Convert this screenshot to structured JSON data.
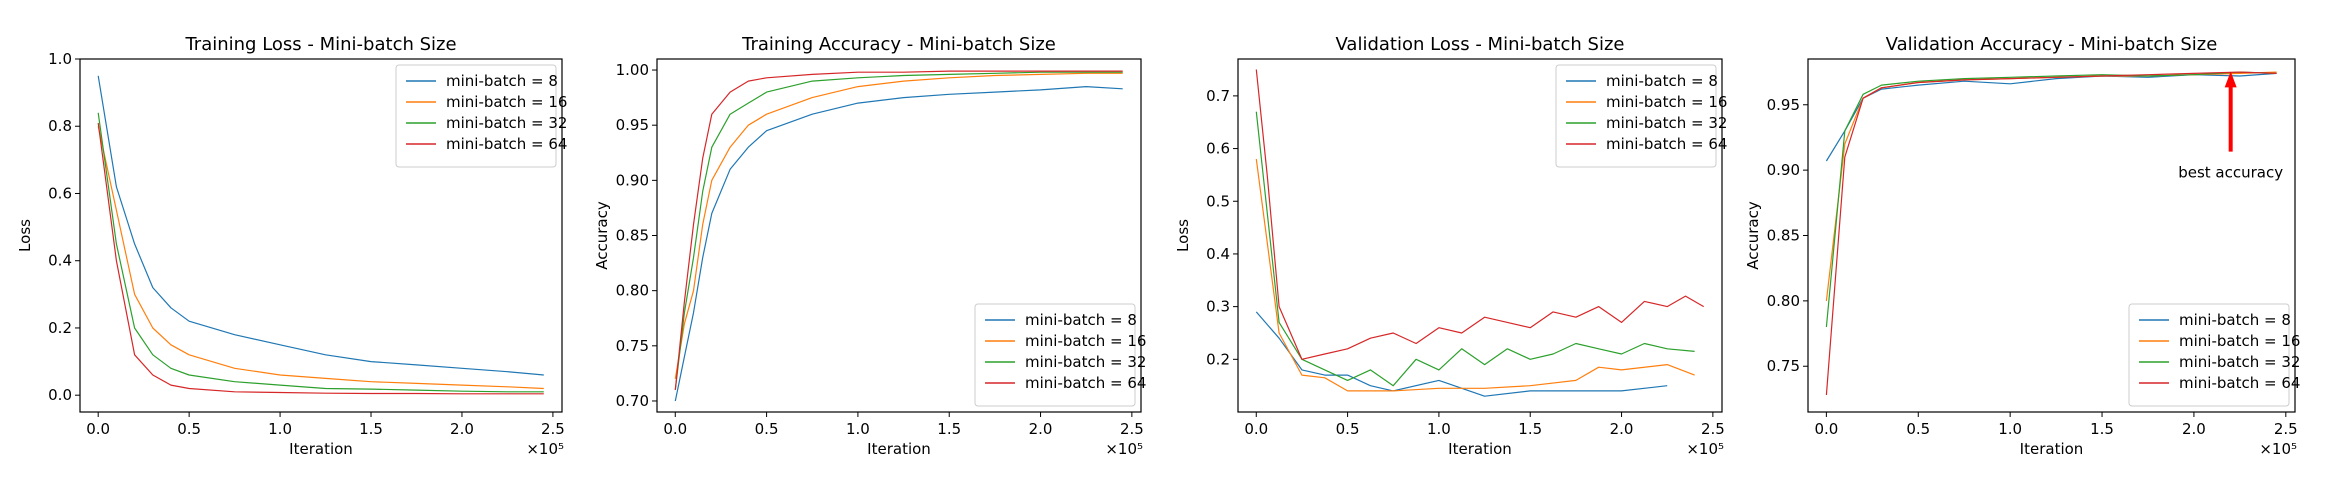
{
  "colors": {
    "mb8": "#1f77b4",
    "mb16": "#ff7f0e",
    "mb32": "#2ca02c",
    "mb64": "#d62728",
    "arrow": "#ff0000"
  },
  "chart_data": [
    {
      "type": "line",
      "title": "Training Loss - Mini-batch Size",
      "xlabel": "Iteration",
      "ylabel": "Loss",
      "x_offset_label": "×10⁵",
      "xlim": [
        -0.1,
        2.55
      ],
      "ylim": [
        -0.05,
        1.0
      ],
      "xticks": [
        0.0,
        0.5,
        1.0,
        1.5,
        2.0,
        2.5
      ],
      "xtick_labels": [
        "0.0",
        "0.5",
        "1.0",
        "1.5",
        "2.0",
        "2.5"
      ],
      "yticks": [
        0.0,
        0.2,
        0.4,
        0.6,
        0.8,
        1.0
      ],
      "ytick_labels": [
        "0.0",
        "0.2",
        "0.4",
        "0.6",
        "0.8",
        "1.0"
      ],
      "legend_position": "top-right",
      "series": [
        {
          "name": "mini-batch = 8",
          "color": "#1f77b4",
          "x": [
            0.0,
            0.1,
            0.2,
            0.3,
            0.4,
            0.5,
            0.75,
            1.0,
            1.25,
            1.5,
            1.75,
            2.0,
            2.25,
            2.45
          ],
          "y": [
            0.95,
            0.62,
            0.45,
            0.32,
            0.26,
            0.22,
            0.18,
            0.15,
            0.12,
            0.1,
            0.09,
            0.08,
            0.07,
            0.06
          ]
        },
        {
          "name": "mini-batch = 16",
          "color": "#ff7f0e",
          "x": [
            0.0,
            0.1,
            0.2,
            0.3,
            0.4,
            0.5,
            0.75,
            1.0,
            1.25,
            1.5,
            1.75,
            2.0,
            2.25,
            2.45
          ],
          "y": [
            0.8,
            0.55,
            0.3,
            0.2,
            0.15,
            0.12,
            0.08,
            0.06,
            0.05,
            0.04,
            0.035,
            0.03,
            0.025,
            0.02
          ]
        },
        {
          "name": "mini-batch = 32",
          "color": "#2ca02c",
          "x": [
            0.0,
            0.1,
            0.2,
            0.3,
            0.4,
            0.5,
            0.75,
            1.0,
            1.25,
            1.5,
            1.75,
            2.0,
            2.25,
            2.45
          ],
          "y": [
            0.84,
            0.45,
            0.2,
            0.12,
            0.08,
            0.06,
            0.04,
            0.03,
            0.02,
            0.018,
            0.015,
            0.012,
            0.01,
            0.01
          ]
        },
        {
          "name": "mini-batch = 64",
          "color": "#d62728",
          "x": [
            0.0,
            0.1,
            0.2,
            0.3,
            0.4,
            0.5,
            0.75,
            1.0,
            1.25,
            1.5,
            1.75,
            2.0,
            2.25,
            2.45
          ],
          "y": [
            0.81,
            0.4,
            0.12,
            0.06,
            0.03,
            0.02,
            0.01,
            0.008,
            0.006,
            0.005,
            0.005,
            0.004,
            0.004,
            0.004
          ]
        }
      ]
    },
    {
      "type": "line",
      "title": "Training Accuracy - Mini-batch Size",
      "xlabel": "Iteration",
      "ylabel": "Accuracy",
      "x_offset_label": "×10⁵",
      "xlim": [
        -0.1,
        2.55
      ],
      "ylim": [
        0.69,
        1.01
      ],
      "xticks": [
        0.0,
        0.5,
        1.0,
        1.5,
        2.0,
        2.5
      ],
      "xtick_labels": [
        "0.0",
        "0.5",
        "1.0",
        "1.5",
        "2.0",
        "2.5"
      ],
      "yticks": [
        0.7,
        0.75,
        0.8,
        0.85,
        0.9,
        0.95,
        1.0
      ],
      "ytick_labels": [
        "0.70",
        "0.75",
        "0.80",
        "0.85",
        "0.90",
        "0.95",
        "1.00"
      ],
      "legend_position": "bottom-right",
      "series": [
        {
          "name": "mini-batch = 8",
          "color": "#1f77b4",
          "x": [
            0.0,
            0.05,
            0.1,
            0.15,
            0.2,
            0.3,
            0.4,
            0.5,
            0.75,
            1.0,
            1.25,
            1.5,
            1.75,
            2.0,
            2.25,
            2.45
          ],
          "y": [
            0.7,
            0.74,
            0.78,
            0.83,
            0.87,
            0.91,
            0.93,
            0.945,
            0.96,
            0.97,
            0.975,
            0.978,
            0.98,
            0.982,
            0.985,
            0.983
          ]
        },
        {
          "name": "mini-batch = 16",
          "color": "#ff7f0e",
          "x": [
            0.0,
            0.05,
            0.1,
            0.15,
            0.2,
            0.3,
            0.4,
            0.5,
            0.75,
            1.0,
            1.25,
            1.5,
            1.75,
            2.0,
            2.25,
            2.45
          ],
          "y": [
            0.72,
            0.77,
            0.8,
            0.86,
            0.9,
            0.93,
            0.95,
            0.96,
            0.975,
            0.985,
            0.99,
            0.993,
            0.995,
            0.996,
            0.997,
            0.997
          ]
        },
        {
          "name": "mini-batch = 32",
          "color": "#2ca02c",
          "x": [
            0.0,
            0.05,
            0.1,
            0.15,
            0.2,
            0.3,
            0.4,
            0.5,
            0.75,
            1.0,
            1.25,
            1.5,
            1.75,
            2.0,
            2.25,
            2.45
          ],
          "y": [
            0.71,
            0.78,
            0.83,
            0.89,
            0.93,
            0.96,
            0.97,
            0.98,
            0.99,
            0.993,
            0.995,
            0.996,
            0.997,
            0.998,
            0.998,
            0.998
          ]
        },
        {
          "name": "mini-batch = 64",
          "color": "#d62728",
          "x": [
            0.0,
            0.05,
            0.1,
            0.15,
            0.2,
            0.3,
            0.4,
            0.5,
            0.75,
            1.0,
            1.25,
            1.5,
            1.75,
            2.0,
            2.25,
            2.45
          ],
          "y": [
            0.71,
            0.79,
            0.86,
            0.92,
            0.96,
            0.98,
            0.99,
            0.993,
            0.996,
            0.998,
            0.998,
            0.999,
            0.999,
            0.999,
            0.999,
            0.999
          ]
        }
      ]
    },
    {
      "type": "line",
      "title": "Validation Loss - Mini-batch Size",
      "xlabel": "Iteration",
      "ylabel": "Loss",
      "x_offset_label": "×10⁵",
      "xlim": [
        -0.1,
        2.55
      ],
      "ylim": [
        0.1,
        0.77
      ],
      "xticks": [
        0.0,
        0.5,
        1.0,
        1.5,
        2.0,
        2.5
      ],
      "xtick_labels": [
        "0.0",
        "0.5",
        "1.0",
        "1.5",
        "2.0",
        "2.5"
      ],
      "yticks": [
        0.2,
        0.3,
        0.4,
        0.5,
        0.6,
        0.7
      ],
      "ytick_labels": [
        "0.2",
        "0.3",
        "0.4",
        "0.5",
        "0.6",
        "0.7"
      ],
      "legend_position": "top-right",
      "series": [
        {
          "name": "mini-batch = 8",
          "color": "#1f77b4",
          "x": [
            0.0,
            0.125,
            0.25,
            0.375,
            0.5,
            0.625,
            0.75,
            1.0,
            1.25,
            1.5,
            1.75,
            2.0,
            2.25
          ],
          "y": [
            0.29,
            0.24,
            0.18,
            0.17,
            0.17,
            0.15,
            0.14,
            0.16,
            0.13,
            0.14,
            0.14,
            0.14,
            0.15
          ]
        },
        {
          "name": "mini-batch = 16",
          "color": "#ff7f0e",
          "x": [
            0.0,
            0.125,
            0.25,
            0.375,
            0.5,
            0.75,
            1.0,
            1.25,
            1.5,
            1.75,
            1.875,
            2.0,
            2.25,
            2.4
          ],
          "y": [
            0.58,
            0.25,
            0.17,
            0.165,
            0.14,
            0.14,
            0.145,
            0.145,
            0.15,
            0.16,
            0.185,
            0.18,
            0.19,
            0.17
          ]
        },
        {
          "name": "mini-batch = 32",
          "color": "#2ca02c",
          "x": [
            0.0,
            0.125,
            0.25,
            0.375,
            0.5,
            0.625,
            0.75,
            0.875,
            1.0,
            1.125,
            1.25,
            1.375,
            1.5,
            1.625,
            1.75,
            1.875,
            2.0,
            2.125,
            2.25,
            2.4
          ],
          "y": [
            0.67,
            0.27,
            0.2,
            0.18,
            0.16,
            0.18,
            0.15,
            0.2,
            0.18,
            0.22,
            0.19,
            0.22,
            0.2,
            0.21,
            0.23,
            0.22,
            0.21,
            0.23,
            0.22,
            0.215
          ]
        },
        {
          "name": "mini-batch = 64",
          "color": "#d62728",
          "x": [
            0.0,
            0.06,
            0.125,
            0.25,
            0.375,
            0.5,
            0.625,
            0.75,
            0.875,
            1.0,
            1.125,
            1.25,
            1.375,
            1.5,
            1.625,
            1.75,
            1.875,
            2.0,
            2.125,
            2.25,
            2.35,
            2.45
          ],
          "y": [
            0.75,
            0.55,
            0.3,
            0.2,
            0.21,
            0.22,
            0.24,
            0.25,
            0.23,
            0.26,
            0.25,
            0.28,
            0.27,
            0.26,
            0.29,
            0.28,
            0.3,
            0.27,
            0.31,
            0.3,
            0.32,
            0.3
          ]
        }
      ]
    },
    {
      "type": "line",
      "title": "Validation Accuracy - Mini-batch Size",
      "xlabel": "Iteration",
      "ylabel": "Accuracy",
      "x_offset_label": "×10⁵",
      "xlim": [
        -0.1,
        2.55
      ],
      "ylim": [
        0.715,
        0.985
      ],
      "xticks": [
        0.0,
        0.5,
        1.0,
        1.5,
        2.0,
        2.5
      ],
      "xtick_labels": [
        "0.0",
        "0.5",
        "1.0",
        "1.5",
        "2.0",
        "2.5"
      ],
      "yticks": [
        0.75,
        0.8,
        0.85,
        0.9,
        0.95
      ],
      "ytick_labels": [
        "0.75",
        "0.80",
        "0.85",
        "0.90",
        "0.95"
      ],
      "legend_position": "bottom-right",
      "annotation": {
        "text": "best accuracy",
        "arrow_tip": [
          2.2,
          0.974
        ],
        "text_at": [
          2.2,
          0.905
        ]
      },
      "series": [
        {
          "name": "mini-batch = 8",
          "color": "#1f77b4",
          "x": [
            0.0,
            0.1,
            0.2,
            0.3,
            0.5,
            0.75,
            1.0,
            1.25,
            1.5,
            1.75,
            2.0,
            2.25,
            2.45
          ],
          "y": [
            0.907,
            0.93,
            0.955,
            0.962,
            0.965,
            0.968,
            0.966,
            0.97,
            0.972,
            0.971,
            0.973,
            0.972,
            0.974
          ]
        },
        {
          "name": "mini-batch = 16",
          "color": "#ff7f0e",
          "x": [
            0.0,
            0.1,
            0.2,
            0.3,
            0.5,
            0.75,
            1.0,
            1.25,
            1.5,
            1.75,
            2.0,
            2.25,
            2.45
          ],
          "y": [
            0.8,
            0.92,
            0.955,
            0.963,
            0.967,
            0.969,
            0.97,
            0.971,
            0.972,
            0.972,
            0.973,
            0.974,
            0.975
          ]
        },
        {
          "name": "mini-batch = 32",
          "color": "#2ca02c",
          "x": [
            0.0,
            0.1,
            0.2,
            0.3,
            0.5,
            0.75,
            1.0,
            1.25,
            1.5,
            1.75,
            2.0,
            2.25,
            2.45
          ],
          "y": [
            0.78,
            0.93,
            0.958,
            0.965,
            0.968,
            0.97,
            0.971,
            0.972,
            0.973,
            0.972,
            0.973,
            0.975,
            0.974
          ]
        },
        {
          "name": "mini-batch = 64",
          "color": "#d62728",
          "x": [
            0.0,
            0.1,
            0.2,
            0.3,
            0.5,
            0.75,
            1.0,
            1.25,
            1.5,
            1.75,
            2.0,
            2.25,
            2.45
          ],
          "y": [
            0.728,
            0.91,
            0.955,
            0.963,
            0.967,
            0.969,
            0.97,
            0.971,
            0.972,
            0.973,
            0.974,
            0.975,
            0.974
          ]
        }
      ]
    }
  ]
}
